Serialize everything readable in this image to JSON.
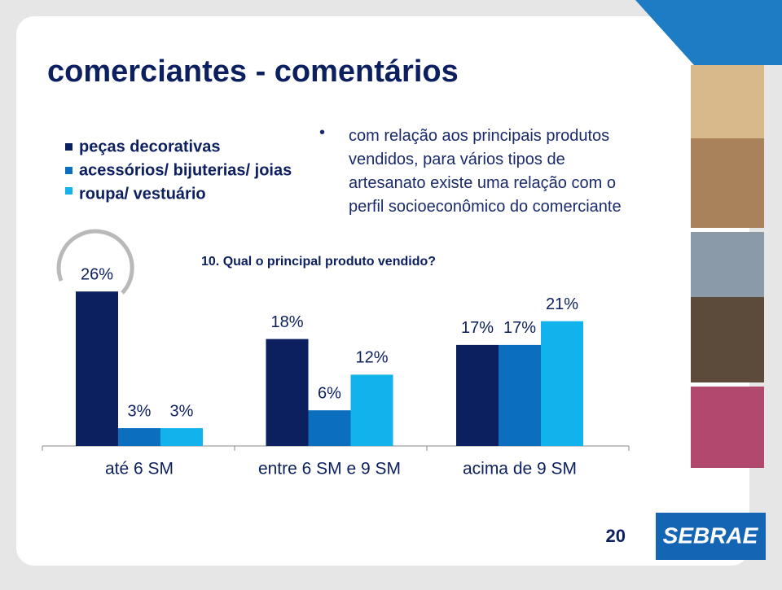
{
  "title": "comerciantes - comentários",
  "bullet": "com relação aos principais produtos vendidos, para vários tipos de artesanato existe uma relação com o perfil socioeconômico do comerciante",
  "chart_data": {
    "type": "bar",
    "title": "10. Qual o principal produto vendido?",
    "categories": [
      "até 6 SM",
      "entre 6 SM e 9 SM",
      "acima de 9 SM"
    ],
    "series": [
      {
        "name": "peças decorativas",
        "color": "#0c1f5e",
        "values": [
          26,
          18,
          17
        ],
        "value_labels": [
          "26%",
          "18%",
          "17%"
        ]
      },
      {
        "name": "acessórios/ bijuterias/ joias",
        "color": "#0b6ebf",
        "values": [
          3,
          6,
          17
        ],
        "value_labels": [
          "3%",
          "6%",
          "17%"
        ]
      },
      {
        "name": "roupa/ vestuário",
        "color": "#12b3ec",
        "values": [
          3,
          12,
          21
        ],
        "value_labels": [
          "3%",
          "12%",
          "21%"
        ]
      }
    ]
  },
  "page_number": "20",
  "logo": "SEBRAE"
}
